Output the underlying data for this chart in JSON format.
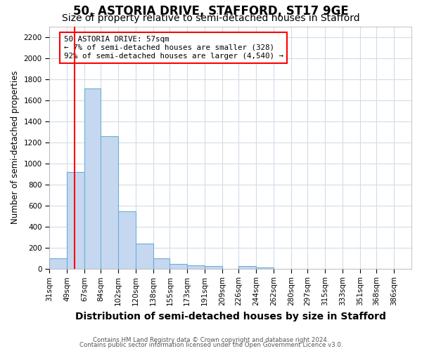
{
  "title1": "50, ASTORIA DRIVE, STAFFORD, ST17 9GE",
  "title2": "Size of property relative to semi-detached houses in Stafford",
  "xlabel": "Distribution of semi-detached houses by size in Stafford",
  "ylabel": "Number of semi-detached properties",
  "categories": [
    "31sqm",
    "49sqm",
    "67sqm",
    "84sqm",
    "102sqm",
    "120sqm",
    "138sqm",
    "155sqm",
    "173sqm",
    "191sqm",
    "209sqm",
    "226sqm",
    "244sqm",
    "262sqm",
    "280sqm",
    "297sqm",
    "315sqm",
    "333sqm",
    "351sqm",
    "368sqm",
    "386sqm"
  ],
  "values": [
    100,
    920,
    1710,
    1260,
    545,
    235,
    100,
    42,
    28,
    22,
    0,
    22,
    8,
    0,
    0,
    0,
    0,
    0,
    0,
    0,
    0
  ],
  "bar_color": "#c5d8f0",
  "bar_edge_color": "#6baed6",
  "annotation_line1": "50 ASTORIA DRIVE: 57sqm",
  "annotation_line2": "← 7% of semi-detached houses are smaller (328)",
  "annotation_line3": "92% of semi-detached houses are larger (4,540) →",
  "ylim": [
    0,
    2300
  ],
  "yticks": [
    0,
    200,
    400,
    600,
    800,
    1000,
    1200,
    1400,
    1600,
    1800,
    2000,
    2200
  ],
  "footer1": "Contains HM Land Registry data © Crown copyright and database right 2024.",
  "footer2": "Contains public sector information licensed under the Open Government Licence v3.0.",
  "bg_color": "#ffffff",
  "plot_bg_color": "#ffffff",
  "grid_color": "#d0dce8",
  "title1_fontsize": 12,
  "title2_fontsize": 10,
  "xlabel_fontsize": 10,
  "ylabel_fontsize": 8.5,
  "tick_fontsize": 7.5,
  "red_line_value": 57,
  "bin_edges_values": [
    31,
    49,
    67,
    84,
    102,
    120,
    138,
    155,
    173,
    191,
    209,
    226,
    244,
    262,
    280,
    297,
    315,
    333,
    351,
    368,
    386,
    404
  ]
}
